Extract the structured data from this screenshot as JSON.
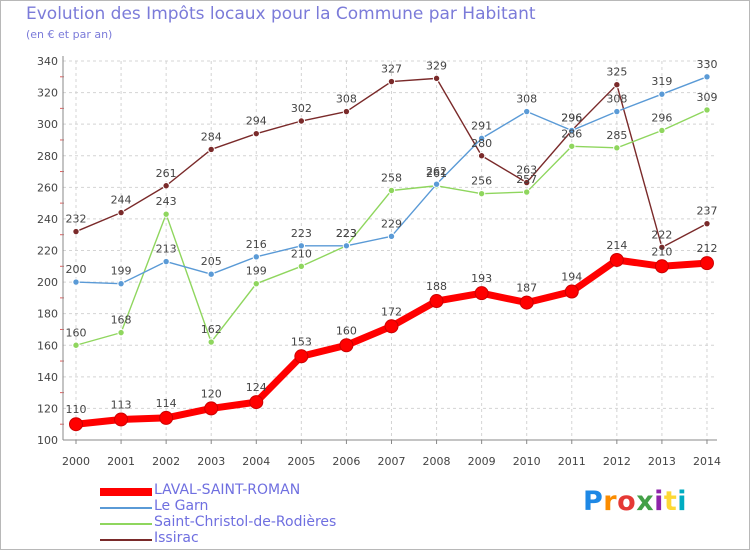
{
  "header": {
    "title": "Evolution des Impôts locaux pour la Commune par Habitant",
    "subtitle": "(en € et par an)"
  },
  "logo": {
    "text": "Proxiti"
  },
  "chart_data": {
    "type": "line",
    "title": "Evolution des Impôts locaux pour la Commune par Habitant",
    "subtitle": "(en € et par an)",
    "categories": [
      "2000",
      "2001",
      "2002",
      "2003",
      "2004",
      "2005",
      "2006",
      "2007",
      "2008",
      "2009",
      "2010",
      "2011",
      "2012",
      "2013",
      "2014"
    ],
    "ylim": [
      100,
      340
    ],
    "yticks": [
      100,
      120,
      140,
      160,
      180,
      200,
      220,
      240,
      260,
      280,
      300,
      320,
      340
    ],
    "grid": true,
    "legend_position": "bottom-left",
    "series": [
      {
        "name": "LAVAL-SAINT-ROMAN",
        "color": "#ff0000",
        "values": [
          110,
          113,
          114,
          120,
          124,
          153,
          160,
          172,
          188,
          193,
          187,
          194,
          214,
          210,
          212
        ]
      },
      {
        "name": "Le Garn",
        "color": "#5a9ad6",
        "values": [
          200,
          199,
          213,
          205,
          216,
          223,
          223,
          229,
          262,
          291,
          308,
          296,
          308,
          319,
          330
        ]
      },
      {
        "name": "Saint-Christol-de-Rodières",
        "color": "#8fd65e",
        "values": [
          160,
          168,
          243,
          162,
          199,
          210,
          223,
          258,
          261,
          256,
          257,
          286,
          285,
          296,
          309
        ]
      },
      {
        "name": "Issirac",
        "color": "#7a2a2a",
        "values": [
          232,
          244,
          261,
          284,
          294,
          302,
          308,
          327,
          329,
          280,
          263,
          296,
          325,
          222,
          237
        ]
      }
    ]
  }
}
